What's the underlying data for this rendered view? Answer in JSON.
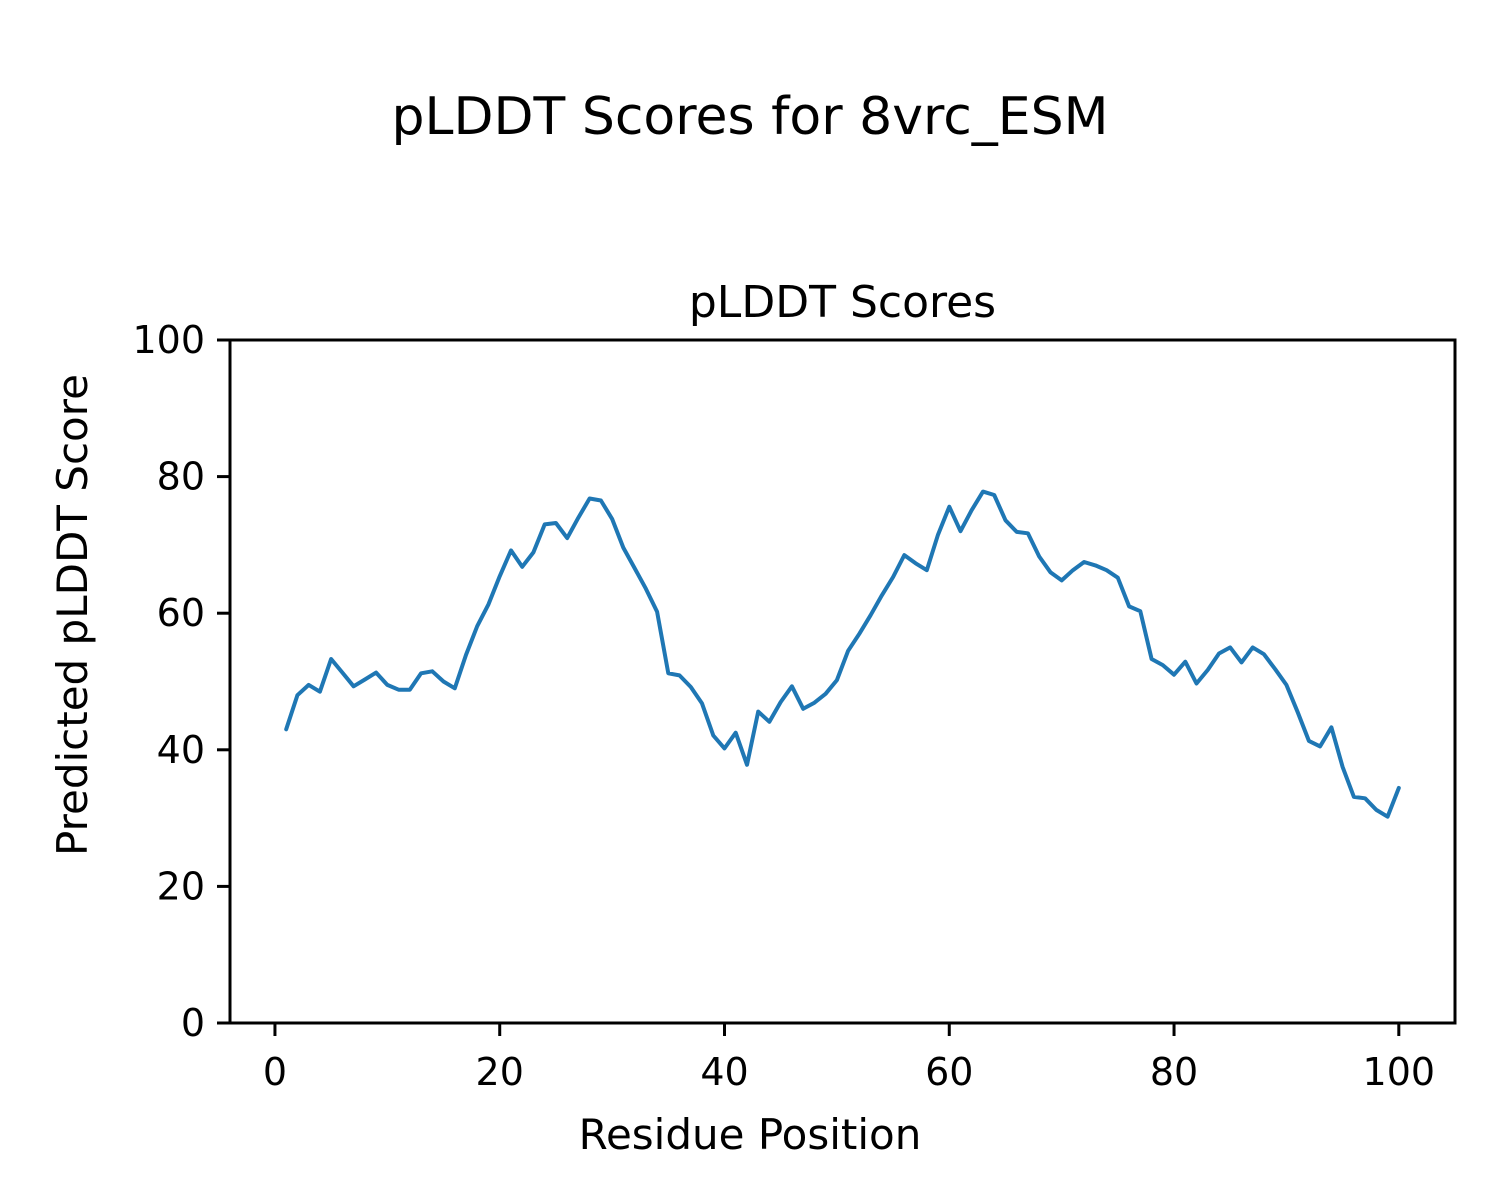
{
  "figure": {
    "title": "pLDDT Scores for 8vrc_ESM"
  },
  "chart_data": {
    "type": "line",
    "title": "pLDDT Scores",
    "xlabel": "Residue Position",
    "ylabel": "Predicted pLDDT Score",
    "xlim": [
      -4,
      105
    ],
    "ylim": [
      0,
      100
    ],
    "xticks": [
      0,
      20,
      40,
      60,
      80,
      100
    ],
    "yticks": [
      0,
      20,
      40,
      60,
      80,
      100
    ],
    "grid": false,
    "legend": null,
    "line_color": "#1f77b4",
    "x": [
      1,
      2,
      3,
      4,
      5,
      6,
      7,
      8,
      9,
      10,
      11,
      12,
      13,
      14,
      15,
      16,
      17,
      18,
      19,
      20,
      21,
      22,
      23,
      24,
      25,
      26,
      27,
      28,
      29,
      30,
      31,
      32,
      33,
      34,
      35,
      36,
      37,
      38,
      39,
      40,
      41,
      42,
      43,
      44,
      45,
      46,
      47,
      48,
      49,
      50,
      51,
      52,
      53,
      54,
      55,
      56,
      57,
      58,
      59,
      60,
      61,
      62,
      63,
      64,
      65,
      66,
      67,
      68,
      69,
      70,
      71,
      72,
      73,
      74,
      75,
      76,
      77,
      78,
      79,
      80,
      81,
      82,
      83,
      84,
      85,
      86,
      87,
      88,
      89,
      90,
      91,
      92,
      93,
      94,
      95,
      96,
      97,
      98,
      99,
      100
    ],
    "y": [
      43.0,
      48.0,
      49.5,
      48.5,
      53.3,
      51.3,
      49.3,
      50.3,
      51.3,
      49.5,
      48.8,
      48.8,
      51.2,
      51.5,
      50.0,
      49.0,
      53.9,
      58.1,
      61.3,
      65.4,
      69.2,
      66.8,
      68.9,
      73.0,
      73.2,
      71.0,
      74.0,
      76.8,
      76.5,
      73.8,
      69.6,
      66.6,
      63.6,
      60.2,
      51.2,
      50.9,
      49.2,
      46.8,
      42.1,
      40.2,
      42.5,
      37.8,
      45.6,
      44.1,
      47.0,
      49.3,
      46.0,
      46.9,
      48.2,
      50.2,
      54.5,
      57.0,
      59.7,
      62.6,
      65.3,
      68.5,
      67.3,
      66.3,
      71.5,
      75.6,
      72.0,
      75.1,
      77.8,
      77.3,
      73.6,
      71.9,
      71.7,
      68.3,
      66.0,
      64.8,
      66.3,
      67.5,
      67.0,
      66.3,
      65.2,
      61.0,
      60.3,
      53.3,
      52.4,
      51.0,
      52.9,
      49.7,
      51.7,
      54.1,
      55.0,
      52.8,
      55.0,
      54.0,
      51.8,
      49.5,
      45.5,
      41.3,
      40.5,
      43.3,
      37.5,
      33.1,
      32.9,
      31.2,
      30.2,
      34.4
    ]
  }
}
